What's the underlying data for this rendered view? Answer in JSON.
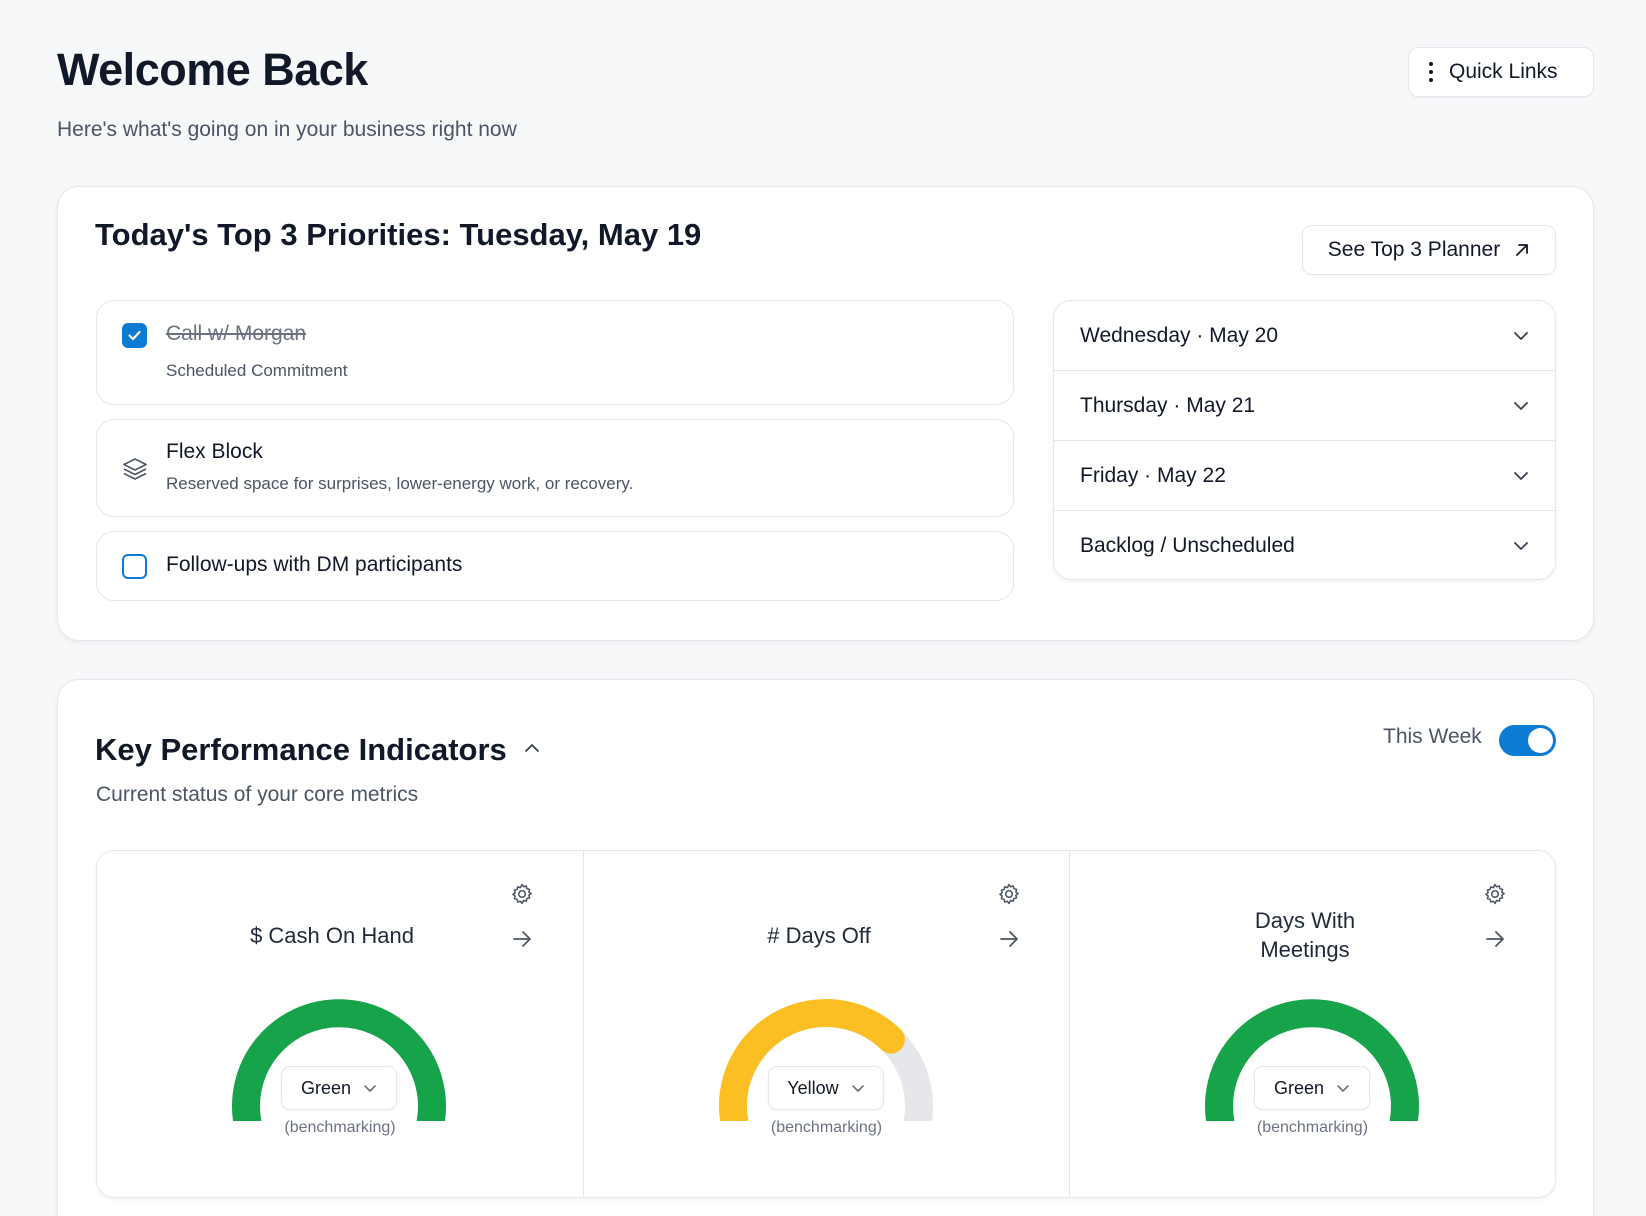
{
  "header": {
    "title": "Welcome Back",
    "subtitle": "Here's what's going on in your business right now",
    "quick_links_label": "Quick Links"
  },
  "priorities": {
    "title": "Today's Top 3 Priorities: Tuesday, May 19",
    "planner_button_label": "See Top 3 Planner",
    "items": [
      {
        "title": "Call w/ Morgan",
        "subtitle": "Scheduled Commitment",
        "checked": true,
        "kind": "checkbox"
      },
      {
        "title": "Flex Block",
        "subtitle": "Reserved space for surprises, lower-energy work, or recovery.",
        "kind": "stack-icon"
      },
      {
        "title": "Follow-ups with DM participants",
        "checked": false,
        "kind": "checkbox"
      }
    ],
    "days": [
      {
        "label": "Wednesday · May 20"
      },
      {
        "label": "Thursday · May 21"
      },
      {
        "label": "Friday · May 22"
      },
      {
        "label": "Backlog / Unscheduled"
      }
    ]
  },
  "kpi": {
    "title": "Key Performance Indicators",
    "subtitle": "Current status of your core metrics",
    "toggle_label": "This Week",
    "toggle_on": true,
    "metrics": [
      {
        "name": "$ Cash On Hand",
        "status": "Green",
        "note": "(benchmarking)",
        "color": "#16a34a",
        "fill": 1.0
      },
      {
        "name": "# Days Off",
        "status": "Yellow",
        "note": "(benchmarking)",
        "color": "#fbbf24",
        "fill": 0.72
      },
      {
        "name": "Days With Meetings",
        "status": "Green",
        "note": "(benchmarking)",
        "color": "#16a34a",
        "fill": 1.0
      }
    ],
    "track_color": "#e5e7eb"
  },
  "colors": {
    "accent": "#0b7bd3",
    "green": "#16a34a",
    "yellow": "#fbbf24"
  }
}
